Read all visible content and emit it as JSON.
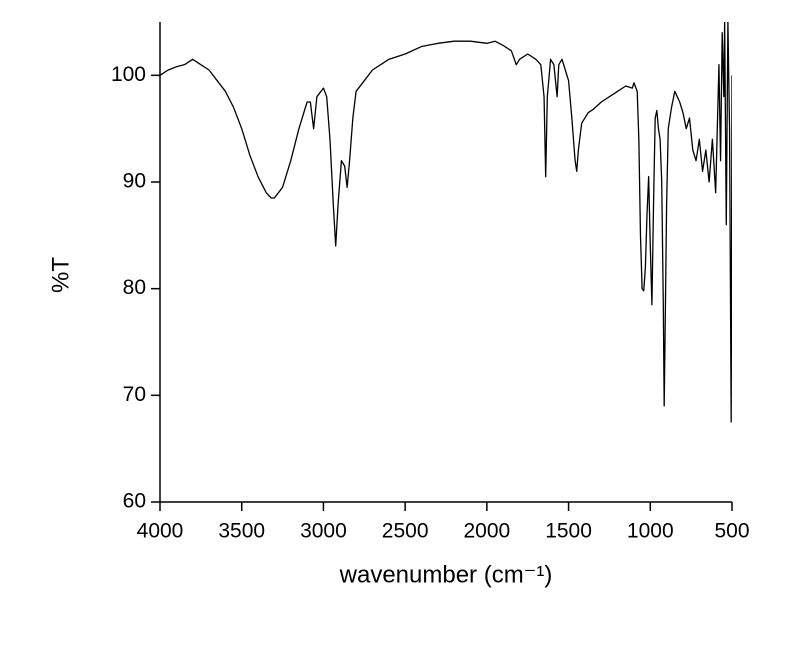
{
  "chart_data": {
    "type": "line",
    "xlabel": "wavenumber (cm⁻¹)",
    "ylabel": "%T",
    "xlim": [
      4000,
      500
    ],
    "ylim": [
      60,
      105
    ],
    "xticks": [
      4000,
      3500,
      3000,
      2500,
      2000,
      1500,
      1000,
      500
    ],
    "yticks": [
      60,
      70,
      80,
      90,
      100
    ],
    "x": [
      4000,
      3950,
      3900,
      3850,
      3800,
      3750,
      3700,
      3650,
      3600,
      3550,
      3500,
      3450,
      3400,
      3350,
      3320,
      3300,
      3250,
      3200,
      3150,
      3100,
      3080,
      3060,
      3040,
      3000,
      2980,
      2960,
      2940,
      2925,
      2910,
      2890,
      2870,
      2855,
      2840,
      2820,
      2800,
      2750,
      2700,
      2600,
      2500,
      2400,
      2300,
      2200,
      2100,
      2000,
      1950,
      1900,
      1850,
      1820,
      1800,
      1750,
      1700,
      1670,
      1650,
      1640,
      1630,
      1610,
      1590,
      1570,
      1560,
      1540,
      1520,
      1500,
      1480,
      1460,
      1450,
      1440,
      1420,
      1400,
      1380,
      1350,
      1300,
      1250,
      1200,
      1150,
      1110,
      1100,
      1080,
      1070,
      1060,
      1050,
      1040,
      1030,
      1020,
      1010,
      1000,
      990,
      980,
      970,
      960,
      950,
      940,
      930,
      920,
      915,
      910,
      900,
      890,
      870,
      850,
      820,
      800,
      780,
      760,
      740,
      720,
      700,
      680,
      660,
      640,
      620,
      600,
      590,
      580,
      570,
      560,
      550,
      545,
      535,
      525,
      515,
      505,
      500
    ],
    "series": [
      {
        "color": "#000000",
        "values": [
          100,
          100.5,
          100.8,
          101,
          101.5,
          101,
          100.5,
          99.5,
          98.5,
          97,
          95,
          92.5,
          90.5,
          89,
          88.5,
          88.5,
          89.5,
          92,
          95,
          97.5,
          97.5,
          95,
          98,
          98.8,
          98,
          94,
          88,
          84,
          88,
          92,
          91.5,
          89.5,
          92,
          96,
          98.5,
          99.5,
          100.5,
          101.5,
          102,
          102.7,
          103,
          103.2,
          103.2,
          103,
          103.2,
          102.8,
          102.3,
          101,
          101.5,
          102,
          101.5,
          101,
          98,
          90.5,
          98,
          101.5,
          101,
          98,
          101,
          101.5,
          100.5,
          99.5,
          96,
          92,
          91,
          93,
          95.5,
          96,
          96.5,
          96.8,
          97.5,
          98,
          98.5,
          99,
          98.8,
          99.3,
          98.5,
          94,
          85,
          80,
          79.8,
          82,
          87,
          90.5,
          84,
          78.5,
          88,
          96,
          96.7,
          95,
          94,
          90,
          78,
          69,
          75,
          88,
          95,
          97,
          98.5,
          97.5,
          96.5,
          95,
          96,
          93,
          92,
          94,
          91,
          93,
          90,
          94,
          89,
          95,
          101,
          92,
          104,
          98,
          105,
          86,
          105,
          95,
          67.5,
          100
        ]
      }
    ]
  }
}
